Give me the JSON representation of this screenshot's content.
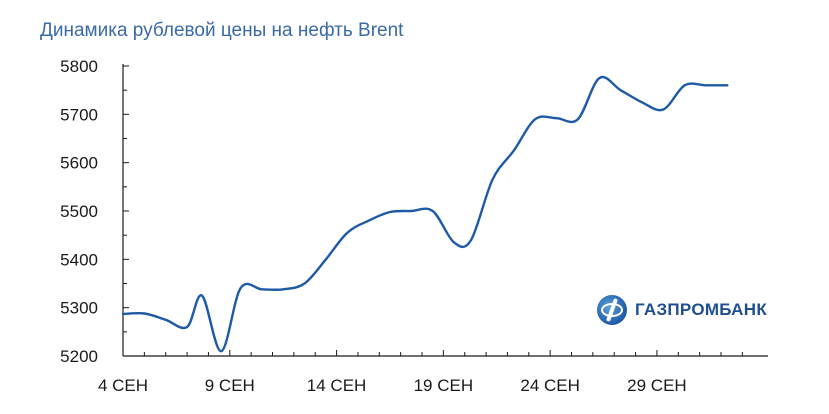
{
  "chart_data": {
    "type": "line",
    "title": "Динамика рублевой цены на нефть Brent",
    "xlabel": "",
    "ylabel": "",
    "ylim": [
      5200,
      5800
    ],
    "y_ticks": [
      "5800",
      "5700",
      "5600",
      "5500",
      "5400",
      "5300",
      "5200"
    ],
    "x_ticks": [
      "4 СЕН",
      "9 СЕН",
      "14 СЕН",
      "19 СЕН",
      "24 СЕН",
      "29 СЕН"
    ],
    "grid": false,
    "series": [
      {
        "color": "#1f5aa6",
        "points": [
          [
            4,
            5287
          ],
          [
            5,
            5288
          ],
          [
            6,
            5275
          ],
          [
            7,
            5260
          ],
          [
            7.7,
            5325
          ],
          [
            8.6,
            5210
          ],
          [
            9.5,
            5340
          ],
          [
            10.5,
            5338
          ],
          [
            11.5,
            5338
          ],
          [
            12.5,
            5350
          ],
          [
            13.5,
            5400
          ],
          [
            14.5,
            5455
          ],
          [
            15.5,
            5480
          ],
          [
            16.5,
            5498
          ],
          [
            17.5,
            5500
          ],
          [
            18.5,
            5500
          ],
          [
            19.5,
            5435
          ],
          [
            20.3,
            5440
          ],
          [
            21.3,
            5565
          ],
          [
            22.3,
            5625
          ],
          [
            23.3,
            5690
          ],
          [
            24.3,
            5692
          ],
          [
            25.3,
            5690
          ],
          [
            26.3,
            5775
          ],
          [
            27.3,
            5750
          ],
          [
            28.3,
            5725
          ],
          [
            29.3,
            5710
          ],
          [
            30.3,
            5760
          ],
          [
            31.3,
            5760
          ],
          [
            32.3,
            5760
          ]
        ]
      }
    ]
  },
  "logo": {
    "text": "ГАЗПРОМБАНК",
    "icon": "gazprombank-logo-icon"
  }
}
